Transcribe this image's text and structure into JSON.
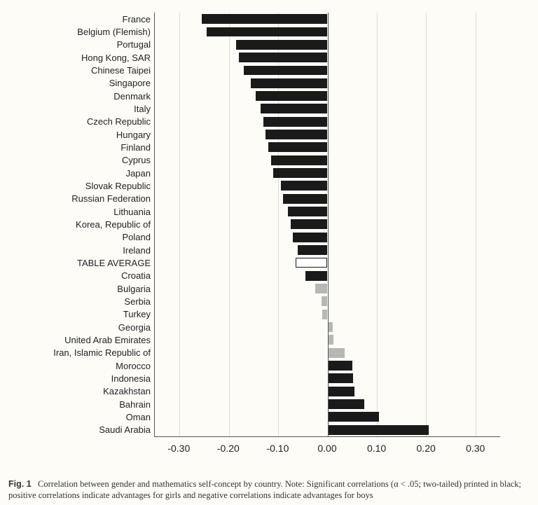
{
  "chart": {
    "type": "bar-horizontal",
    "xlim": [
      -0.35,
      0.35
    ],
    "xticks": [
      -0.3,
      -0.2,
      -0.1,
      0.0,
      0.1,
      0.2,
      0.3
    ],
    "xtick_labels": [
      "-0.30",
      "-0.20",
      "-0.10",
      "0.00",
      "0.10",
      "0.20",
      "0.30"
    ],
    "grid_color": "#dedcd5",
    "axis_color": "#555555",
    "background_color": "#fdfcf7",
    "label_fontsize": 13,
    "tick_fontsize": 14,
    "bar_colors": {
      "significant": "#1a1a1a",
      "nonsignificant": "#b7b7b3",
      "average_fill": "#ffffff",
      "average_border": "#1a1a1a"
    },
    "rows": [
      {
        "label": "France",
        "value": -0.255,
        "style": "significant"
      },
      {
        "label": "Belgium (Flemish)",
        "value": -0.245,
        "style": "significant"
      },
      {
        "label": "Portugal",
        "value": -0.185,
        "style": "significant"
      },
      {
        "label": "Hong Kong, SAR",
        "value": -0.18,
        "style": "significant"
      },
      {
        "label": "Chinese Taipei",
        "value": -0.17,
        "style": "significant"
      },
      {
        "label": "Singapore",
        "value": -0.155,
        "style": "significant"
      },
      {
        "label": "Denmark",
        "value": -0.145,
        "style": "significant"
      },
      {
        "label": "Italy",
        "value": -0.135,
        "style": "significant"
      },
      {
        "label": "Czech Republic",
        "value": -0.13,
        "style": "significant"
      },
      {
        "label": "Hungary",
        "value": -0.125,
        "style": "significant"
      },
      {
        "label": "Finland",
        "value": -0.12,
        "style": "significant"
      },
      {
        "label": "Cyprus",
        "value": -0.115,
        "style": "significant"
      },
      {
        "label": "Japan",
        "value": -0.11,
        "style": "significant"
      },
      {
        "label": "Slovak Republic",
        "value": -0.095,
        "style": "significant"
      },
      {
        "label": "Russian Federation",
        "value": -0.09,
        "style": "significant"
      },
      {
        "label": "Lithuania",
        "value": -0.08,
        "style": "significant"
      },
      {
        "label": "Korea, Republic of",
        "value": -0.075,
        "style": "significant"
      },
      {
        "label": "Poland",
        "value": -0.07,
        "style": "significant"
      },
      {
        "label": "Ireland",
        "value": -0.06,
        "style": "significant"
      },
      {
        "label": "TABLE AVERAGE",
        "value": -0.065,
        "style": "average"
      },
      {
        "label": "Croatia",
        "value": -0.045,
        "style": "significant"
      },
      {
        "label": "Bulgaria",
        "value": -0.025,
        "style": "nonsignificant"
      },
      {
        "label": "Serbia",
        "value": -0.012,
        "style": "nonsignificant"
      },
      {
        "label": "Turkey",
        "value": -0.01,
        "style": "nonsignificant"
      },
      {
        "label": "Georgia",
        "value": 0.01,
        "style": "nonsignificant"
      },
      {
        "label": "United Arab Emirates",
        "value": 0.012,
        "style": "nonsignificant"
      },
      {
        "label": "Iran, Islamic Republic of",
        "value": 0.035,
        "style": "nonsignificant"
      },
      {
        "label": "Morocco",
        "value": 0.05,
        "style": "significant"
      },
      {
        "label": "Indonesia",
        "value": 0.052,
        "style": "significant"
      },
      {
        "label": "Kazakhstan",
        "value": 0.055,
        "style": "significant"
      },
      {
        "label": "Bahrain",
        "value": 0.075,
        "style": "significant"
      },
      {
        "label": "Oman",
        "value": 0.105,
        "style": "significant"
      },
      {
        "label": "Saudi Arabia",
        "value": 0.205,
        "style": "significant"
      }
    ]
  },
  "caption": {
    "lead": "Fig. 1",
    "text": "Correlation between gender and mathematics self-concept by country. Note: Significant correlations (α < .05; two-tailed) printed in black; positive correlations indicate advantages for girls and negative correlations indicate advantages for boys"
  }
}
